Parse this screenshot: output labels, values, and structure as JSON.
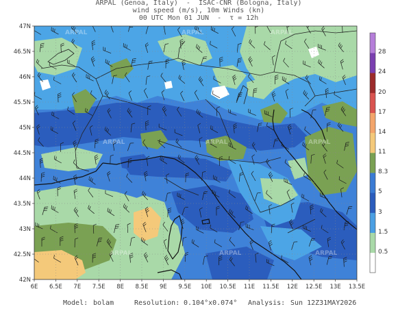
{
  "header": {
    "line1": "ARPAL (Genoa, Italy)  -  ISAC-CNR (Bologna, Italy)",
    "line2": "wind speed (m/s), 10m Winds (kn)",
    "line3": "00 UTC Mon 01 JUN  -  τ = 12h"
  },
  "map": {
    "lat_labels": [
      "47N",
      "46.5N",
      "46N",
      "45.5N",
      "45N",
      "44.5N",
      "44N",
      "43.5N",
      "43N",
      "42.5N",
      "42N"
    ],
    "lon_labels": [
      "6E",
      "6.5E",
      "7E",
      "7.5E",
      "8E",
      "8.5E",
      "9E",
      "9.5E",
      "10E",
      "10.5E",
      "11E",
      "11.5E",
      "12E",
      "12.5E",
      "13E",
      "13.5E"
    ],
    "watermark": "ARPAL",
    "colors": {
      "green_dark": "#7aa153",
      "green_light": "#a9d9a8",
      "blue_light": "#4a9fe3",
      "blue_mid": "#3a7bd4",
      "blue_dark": "#2b5dbd",
      "yellow": "#f4c97a",
      "white": "#ffffff"
    }
  },
  "colorbar": {
    "labels": [
      "0.5",
      "1.5",
      "3",
      "5",
      "8.3",
      "11",
      "14",
      "17",
      "20",
      "24",
      "28"
    ],
    "colors": [
      "#ffffff",
      "#a9d9a8",
      "#4a9fe3",
      "#2b5dbd",
      "#3a7bd4",
      "#7aa153",
      "#f4c97a",
      "#f3a56b",
      "#d9534f",
      "#9c2b2b",
      "#7a3fb0",
      "#b57ed9"
    ]
  },
  "footer": {
    "model_label": "Model:",
    "model_value": "bolam",
    "resolution_label": "Resolution:",
    "resolution_value": "0.104°x0.074°",
    "analysis_label": "Analysis:",
    "analysis_value": "Sun 12Z31MAY2026"
  }
}
